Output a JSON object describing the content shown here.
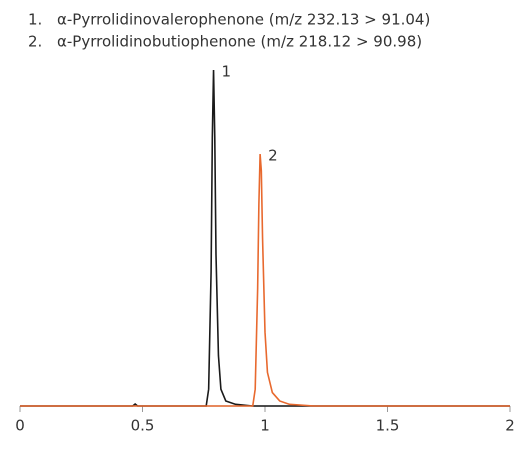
{
  "chart_data": {
    "type": "line",
    "series": [
      {
        "number": "1.",
        "name": "α-Pyrrolidinovalerophenone (m/z 232.13 > 91.04)",
        "peak_label": "1",
        "color": "#1a1a1a",
        "x": [
          0,
          0.46,
          0.47,
          0.48,
          0.76,
          0.77,
          0.78,
          0.785,
          0.79,
          0.795,
          0.8,
          0.81,
          0.82,
          0.84,
          0.88,
          0.95,
          2
        ],
        "values": [
          0,
          0,
          0.6,
          0,
          0,
          5,
          40,
          80,
          100,
          80,
          45,
          15,
          5,
          1.5,
          0.5,
          0,
          0
        ]
      },
      {
        "number": "2.",
        "name": "α-Pyrrolidinobutiophenone (m/z 218.12 > 90.98)",
        "peak_label": "2",
        "color": "#e8692e",
        "x": [
          0,
          0.95,
          0.96,
          0.97,
          0.975,
          0.98,
          0.985,
          0.99,
          1.0,
          1.01,
          1.03,
          1.06,
          1.1,
          1.2,
          2
        ],
        "values": [
          0,
          0,
          5,
          35,
          60,
          75,
          70,
          50,
          22,
          10,
          4,
          1.5,
          0.5,
          0,
          0
        ]
      }
    ],
    "xlim": [
      0,
      2
    ],
    "xticks": [
      0,
      0.5,
      1,
      1.5,
      2
    ],
    "ylim": [
      0,
      100
    ]
  }
}
